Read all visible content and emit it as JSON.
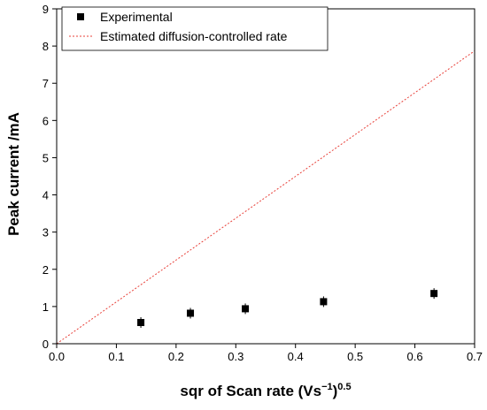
{
  "chart_data": {
    "type": "scatter",
    "xlabel": "sqr of Scan rate (Vs",
    "xlabel_sup1": "−1",
    "xlabel_mid": ")",
    "xlabel_sup2": "0.5",
    "ylabel": "Peak current /mA",
    "xlim": [
      0,
      0.7
    ],
    "ylim": [
      0,
      9
    ],
    "x_ticks": [
      "0.0",
      "0.1",
      "0.2",
      "0.3",
      "0.4",
      "0.5",
      "0.6",
      "0.7"
    ],
    "y_ticks": [
      "0",
      "1",
      "2",
      "3",
      "4",
      "5",
      "6",
      "7",
      "8",
      "9"
    ],
    "grid": false,
    "legend_position": "top-left",
    "series": [
      {
        "name": "Experimental",
        "kind": "scatter",
        "marker": "square",
        "color": "#000000",
        "x": [
          0.141,
          0.224,
          0.316,
          0.447,
          0.632
        ],
        "y": [
          0.57,
          0.82,
          0.94,
          1.13,
          1.35
        ]
      },
      {
        "name": "Estimated diffusion-controlled rate",
        "kind": "line",
        "style": "dashed",
        "color": "#e8413a",
        "x": [
          0,
          0.7
        ],
        "y": [
          0,
          7.87
        ]
      }
    ]
  }
}
